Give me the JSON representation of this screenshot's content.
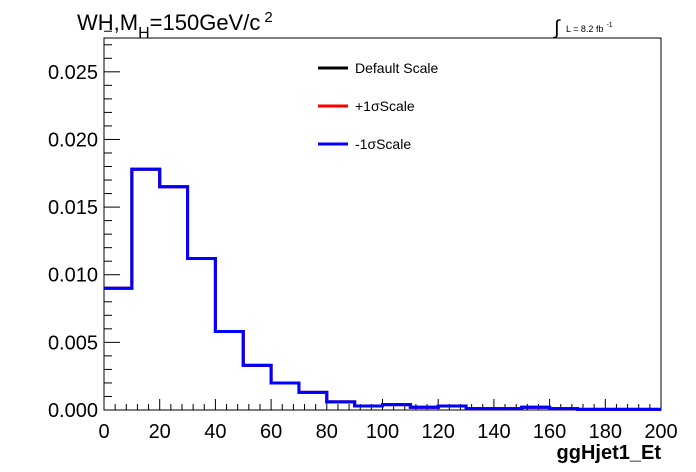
{
  "title": {
    "prefix": "WH,M",
    "subscript": "H",
    "middle": "=150GeV/c",
    "superscript": "2"
  },
  "lumi": {
    "integral_symbol": "∫",
    "text": "L = 8.2 fb",
    "exponent": "-1"
  },
  "chart_data": {
    "type": "line",
    "step": true,
    "xlabel": "ggHjet1_Et",
    "ylabel": "",
    "xlim": [
      0,
      200
    ],
    "ylim": [
      0,
      0.0275
    ],
    "x_ticks": [
      0,
      20,
      40,
      60,
      80,
      100,
      120,
      140,
      160,
      180,
      200
    ],
    "x_tick_labels": [
      "0",
      "20",
      "40",
      "60",
      "80",
      "100",
      "120",
      "140",
      "160",
      "180",
      "200"
    ],
    "y_ticks": [
      0,
      0.005,
      0.01,
      0.015,
      0.02,
      0.025
    ],
    "y_tick_labels": [
      "0.000",
      "0.005",
      "0.010",
      "0.015",
      "0.020",
      "0.025"
    ],
    "grid": false,
    "legend_position": "top-center",
    "bin_edges": [
      0,
      10,
      20,
      30,
      40,
      50,
      60,
      70,
      80,
      90,
      100,
      110,
      120,
      130,
      140,
      150,
      160,
      170,
      180,
      190,
      200
    ],
    "series": [
      {
        "name": "Default Scale",
        "color": "#000000",
        "values": [
          0.009,
          0.0178,
          0.0165,
          0.0112,
          0.0058,
          0.0033,
          0.002,
          0.0013,
          0.0006,
          0.0003,
          0.0004,
          0.0002,
          0.0003,
          0.0001,
          0.0001,
          0.0002,
          0.0001,
          5e-05,
          5e-05,
          5e-05
        ]
      },
      {
        "name": "+1σScale",
        "color": "#ff0000",
        "values": [
          0.009,
          0.0178,
          0.0165,
          0.0112,
          0.0058,
          0.0033,
          0.002,
          0.0013,
          0.0006,
          0.0003,
          0.0004,
          0.0002,
          0.0003,
          0.0001,
          0.0001,
          0.0002,
          0.0001,
          5e-05,
          5e-05,
          5e-05
        ]
      },
      {
        "name": "-1σScale",
        "color": "#0000ff",
        "values": [
          0.009,
          0.0178,
          0.0165,
          0.0112,
          0.0058,
          0.0033,
          0.002,
          0.0013,
          0.0006,
          0.0003,
          0.0004,
          0.0002,
          0.0003,
          0.0001,
          0.0001,
          0.0002,
          0.0001,
          5e-05,
          5e-05,
          5e-05
        ]
      }
    ]
  }
}
